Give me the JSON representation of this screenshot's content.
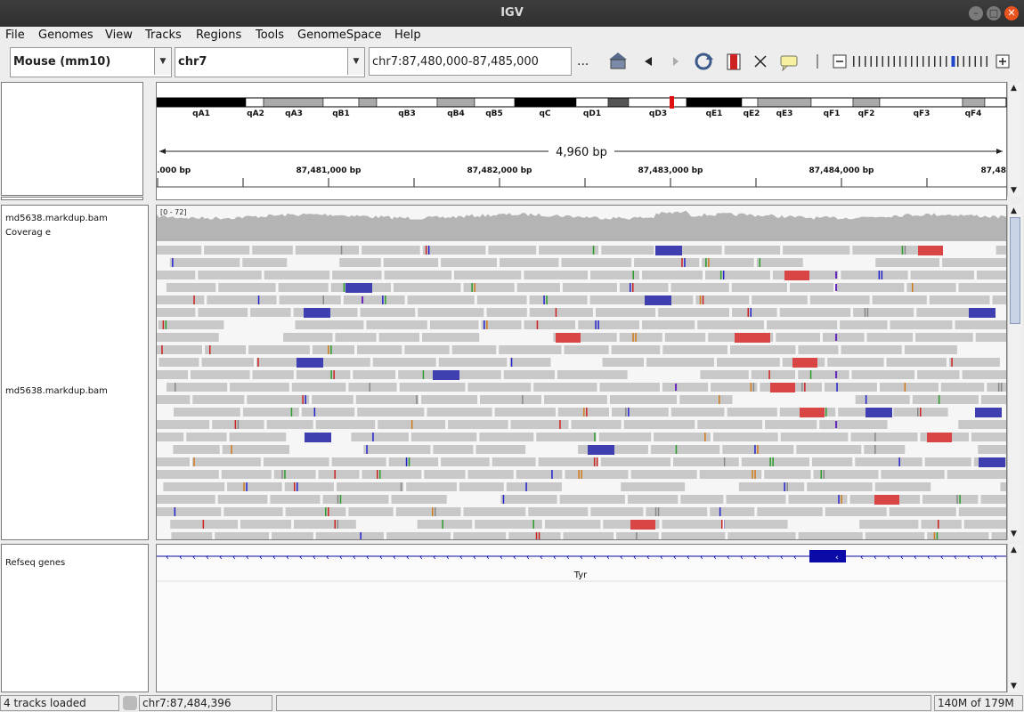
{
  "window": {
    "title": "IGV"
  },
  "menu": [
    "File",
    "Genomes",
    "View",
    "Tracks",
    "Regions",
    "Tools",
    "GenomeSpace",
    "Help"
  ],
  "toolbar": {
    "genome": "Mouse (mm10)",
    "chromosome": "chr7",
    "locus": "chr7:87,480,000-87,485,000",
    "more": "...",
    "icons": [
      "home-icon",
      "back-icon",
      "forward-icon",
      "refresh-icon",
      "roi-icon",
      "fit-icon",
      "popup-icon",
      "zoom-out-icon",
      "zoom-in-icon"
    ],
    "zoom_minus": "−",
    "zoom_plus": "+",
    "zoom_level_fraction": 0.73
  },
  "ideogram": {
    "bands": [
      "qA1",
      "qA2",
      "qA3",
      "qB1",
      "qB3",
      "qB4",
      "qB5",
      "qC",
      "qD1",
      "qD3",
      "qE1",
      "qE2",
      "qE3",
      "qF1",
      "qF2",
      "qF3",
      "qF4"
    ]
  },
  "ruler": {
    "span": "4,960 bp",
    "ticks": [
      ".000 bp",
      "87,481,000 bp",
      "87,482,000 bp",
      "87,483,000 bp",
      "87,484,000 bp",
      "87,48"
    ]
  },
  "tracks": {
    "coverage_name": "md5638.markdup.bam Coverag e",
    "coverage_range": "[0 - 72]",
    "alignment_name": "md5638.markdup.bam",
    "genes_name": "Refseq genes",
    "gene_label": "Tyr"
  },
  "status": {
    "tracks_loaded": "4 tracks loaded",
    "position": "chr7:87,484,396",
    "memory": "140M of 179M"
  },
  "colors": {
    "reverse_strand_read": "#3f3fb2",
    "forward_strand_read": "#d94545",
    "read": "#c8c8c8",
    "coverage": "#b4b4b4",
    "gene": "#0a0aa8"
  }
}
